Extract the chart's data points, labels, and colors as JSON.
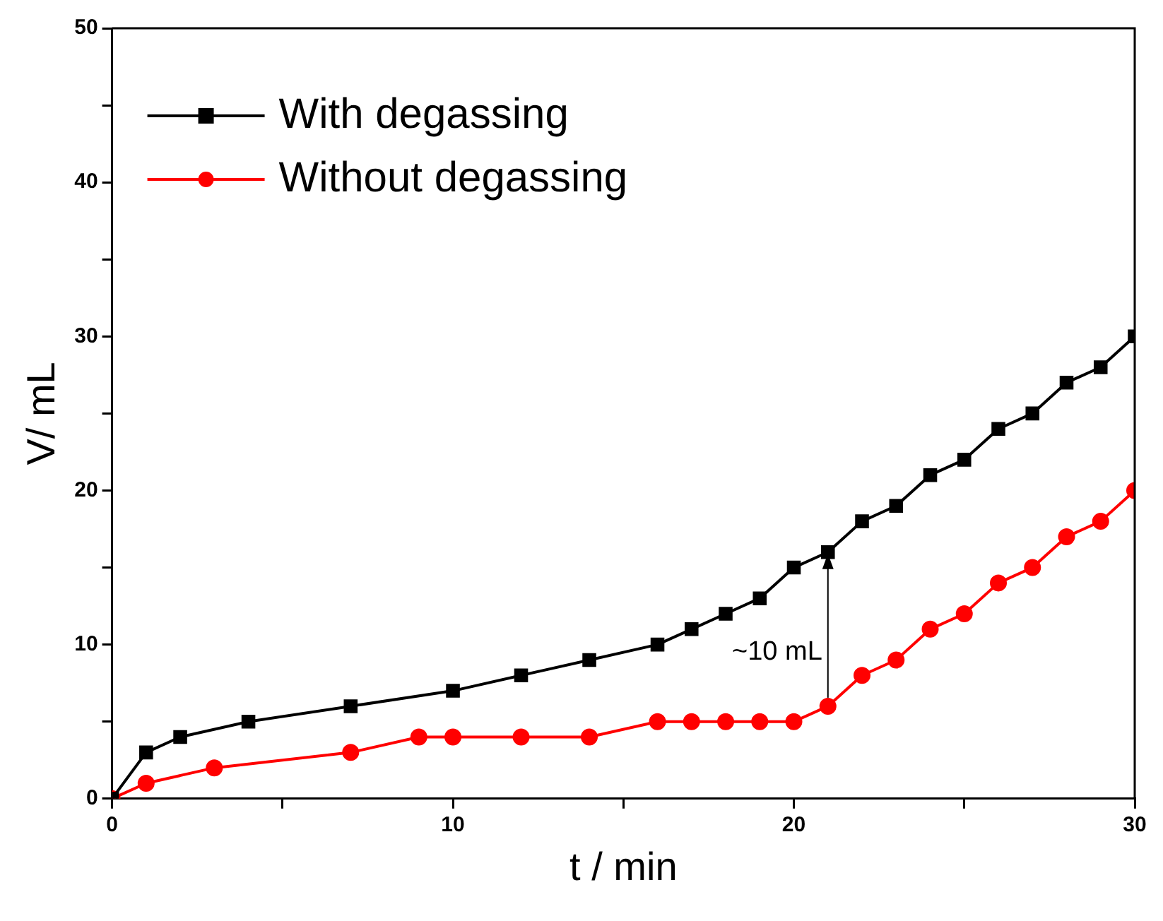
{
  "chart_data": {
    "type": "line",
    "xlabel": "t / min",
    "ylabel": "V/ mL",
    "xlim": [
      0,
      30
    ],
    "xticks": [
      0,
      {
        "value": 5,
        "label": null
      },
      10,
      {
        "value": 15,
        "label": null
      },
      20,
      {
        "value": 25,
        "label": null
      },
      30
    ],
    "ylim": [
      0,
      50
    ],
    "yticks": [
      0,
      {
        "value": 5,
        "label": null
      },
      10,
      {
        "value": 15,
        "label": null
      },
      20,
      {
        "value": 25,
        "label": null
      },
      30,
      {
        "value": 35,
        "label": null
      },
      40,
      {
        "value": 45,
        "label": null
      },
      50
    ],
    "grid": false,
    "legend": "top left",
    "series": [
      {
        "name": "With degassing",
        "color": "#000000",
        "marker": "square",
        "x": [
          0,
          1,
          2,
          4,
          7,
          10,
          12,
          14,
          16,
          17,
          18,
          19,
          20,
          21,
          22,
          23,
          24,
          25,
          26,
          27,
          28,
          29,
          30
        ],
        "values": [
          0,
          3,
          4,
          5,
          6,
          7,
          8,
          9,
          10,
          11,
          12,
          13,
          15,
          16,
          18,
          19,
          21,
          22,
          24,
          25,
          27,
          28,
          30
        ]
      },
      {
        "name": "Without degassing",
        "color": "#ff0000",
        "marker": "circle",
        "x": [
          0,
          1,
          3,
          7,
          9,
          10,
          12,
          14,
          16,
          17,
          18,
          19,
          20,
          21,
          22,
          23,
          24,
          25,
          26,
          27,
          28,
          29,
          30
        ],
        "values": [
          0,
          1,
          2,
          3,
          4,
          4,
          4,
          4,
          5,
          5,
          5,
          5,
          5,
          6,
          8,
          9,
          11,
          12,
          14,
          15,
          17,
          18,
          20
        ]
      }
    ],
    "annotations": [
      {
        "text": "~10 mL",
        "x": 21,
        "y": 16
      }
    ]
  }
}
